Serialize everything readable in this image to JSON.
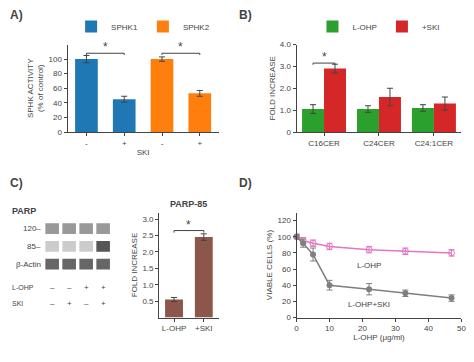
{
  "chart_data": [
    {
      "type": "bar",
      "panel_label": "A)",
      "ylabel": "SPHK ACTIVITY\n(% of control)",
      "xlabel": "SKI",
      "categories": [
        "-",
        "+",
        "-",
        "+"
      ],
      "series": [
        {
          "name": "SPHK1",
          "values": [
            100,
            45,
            null,
            null
          ],
          "errors": [
            5,
            4,
            null,
            null
          ]
        },
        {
          "name": "SPHK2",
          "values": [
            null,
            null,
            100,
            53
          ],
          "errors": [
            null,
            null,
            3,
            4
          ]
        }
      ],
      "ylim": [
        0,
        120
      ],
      "yticks": [
        0,
        20,
        40,
        60,
        80,
        100
      ],
      "legend": "top",
      "grid": false,
      "annotations": [
        {
          "text": "*",
          "x": [
            0,
            1
          ],
          "y": 108
        },
        {
          "text": "*",
          "x": [
            2,
            3
          ],
          "y": 108
        }
      ]
    },
    {
      "type": "bar",
      "panel_label": "B)",
      "ylabel": "FOLD INCREASE",
      "categories": [
        "C16CER",
        "C24CER",
        "C24:1CER"
      ],
      "series": [
        {
          "name": "L-OHP",
          "values": [
            1.05,
            1.05,
            1.1
          ],
          "errors": [
            0.2,
            0.15,
            0.15
          ]
        },
        {
          "name": "+SKI",
          "values": [
            2.9,
            1.6,
            1.3
          ],
          "errors": [
            0.2,
            0.4,
            0.3
          ]
        }
      ],
      "ylim": [
        0,
        4.0
      ],
      "yticks": [
        0,
        {
          "value": 1,
          "label": "1.0"
        },
        {
          "value": 2,
          "label": "2.0"
        },
        {
          "value": 3,
          "label": "3.0"
        },
        {
          "value": 4,
          "label": "4.0"
        }
      ],
      "legend": "top",
      "grid": false,
      "annotations": [
        {
          "text": "*",
          "x": [
            0,
            0
          ],
          "y": 3.15
        }
      ]
    },
    {
      "type": "blot",
      "panel_label": "C)",
      "title": "PARP",
      "rows": [
        {
          "name": "120–",
          "colors": [
            "#999999",
            "#999999",
            "#999999",
            "#999999"
          ]
        },
        {
          "name": "85–",
          "colors": [
            "#cccccc",
            "#cccccc",
            "#cccccc",
            "#555555"
          ]
        },
        {
          "name": "β-Actin",
          "colors": [
            "#666666",
            "#666666",
            "#666666",
            "#666666"
          ]
        }
      ],
      "lanes": [
        {
          "name": "L-OHP",
          "labels": [
            "–",
            "–",
            "+",
            "+"
          ]
        },
        {
          "name": "SKI",
          "labels": [
            "–",
            "+",
            "–",
            "+"
          ]
        }
      ]
    },
    {
      "type": "bar",
      "title": "PARP-85",
      "ylabel": "FOLD INCREASE",
      "categories": [
        "L-OHP",
        "+SKI"
      ],
      "values": [
        0.55,
        2.45
      ],
      "errors": [
        0.06,
        0.1
      ],
      "ylim": [
        0,
        3.2
      ],
      "yticks": [
        0.5,
        {
          "value": 1,
          "label": "1.0"
        },
        1.5,
        {
          "value": 2,
          "label": "2.0"
        },
        2.5,
        {
          "value": 3,
          "label": "3.0"
        }
      ],
      "grid": false,
      "annotations": [
        {
          "text": "*",
          "x": [
            0,
            1
          ],
          "y": 2.65
        }
      ]
    },
    {
      "type": "line",
      "panel_label": "D)",
      "ylabel": "VIABLE CELLS (%)",
      "xlabel": "L-OHP (μg/ml)",
      "xlim": [
        0,
        50
      ],
      "ylim": [
        0,
        130
      ],
      "xticks": [
        0,
        10,
        20,
        30,
        40,
        50
      ],
      "yticks": [
        0,
        20,
        40,
        60,
        80,
        100,
        120
      ],
      "grid": false,
      "series": [
        {
          "name": "L-OHP",
          "marker": "circle-open",
          "x": [
            0,
            2,
            5,
            10,
            22,
            33,
            47
          ],
          "values": [
            100,
            95,
            92,
            88,
            84,
            82,
            80
          ],
          "errors": [
            3,
            4,
            4,
            4,
            4,
            4,
            4
          ]
        },
        {
          "name": "L-OHP+SKI",
          "marker": "circle",
          "x": [
            0,
            2,
            5,
            10,
            22,
            33,
            47
          ],
          "values": [
            100,
            92,
            78,
            40,
            35,
            30,
            24
          ],
          "errors": [
            3,
            5,
            8,
            6,
            7,
            4,
            4
          ]
        }
      ]
    }
  ]
}
